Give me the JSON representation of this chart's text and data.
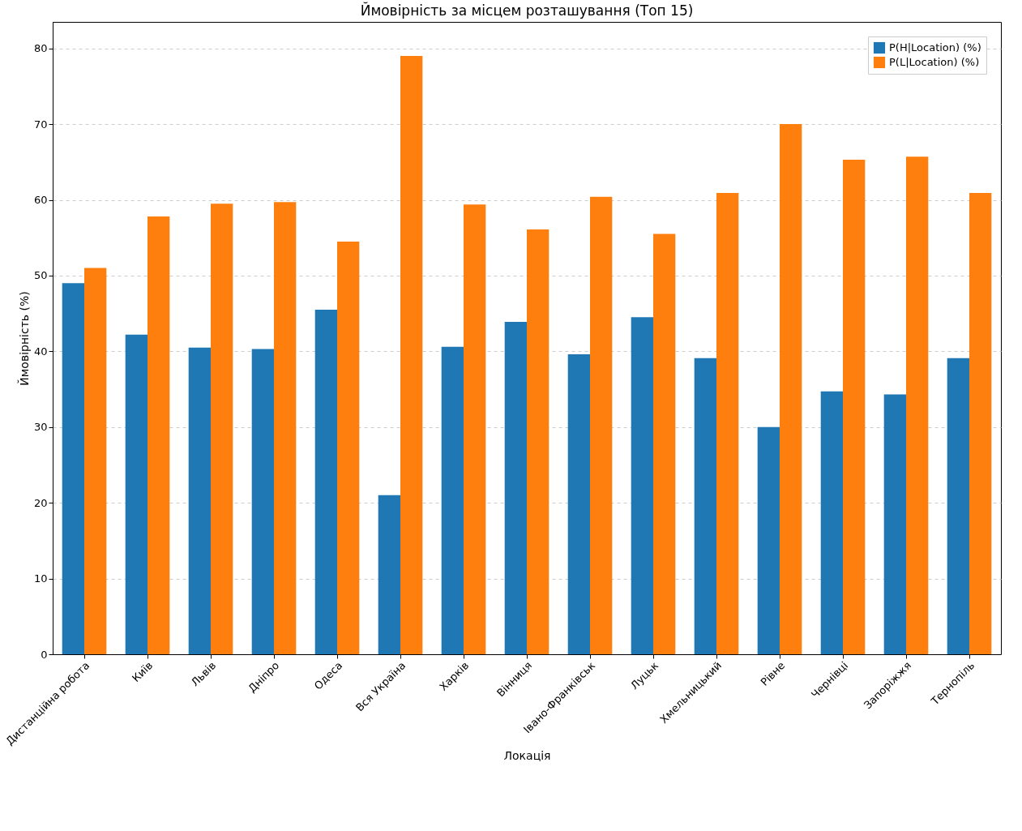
{
  "chart_data": {
    "type": "bar",
    "title": "Ймовірність за місцем розташування (Топ 15)",
    "xlabel": "Локація",
    "ylabel": "Ймовірність (%)",
    "categories": [
      "Дистанційна робота",
      "Київ",
      "Львів",
      "Дніпро",
      "Одеса",
      "Вся Україна",
      "Харків",
      "Вінниця",
      "Івано-Франківськ",
      "Луцьк",
      "Хмельницький",
      "Рівне",
      "Чернівці",
      "Запоріжжя",
      "Тернопіль"
    ],
    "series": [
      {
        "name": "P(H|Location) (%)",
        "color": "#1f77b4",
        "values": [
          49.0,
          42.2,
          40.5,
          40.3,
          45.5,
          21.0,
          40.6,
          43.9,
          39.6,
          44.5,
          39.1,
          30.0,
          34.7,
          34.3,
          39.1
        ]
      },
      {
        "name": "P(L|Location) (%)",
        "color": "#ff7f0e",
        "values": [
          51.0,
          57.8,
          59.5,
          59.7,
          54.5,
          79.0,
          59.4,
          56.1,
          60.4,
          55.5,
          60.9,
          70.0,
          65.3,
          65.7,
          60.9
        ]
      }
    ],
    "ylim": [
      0,
      83.5
    ],
    "yticks": [
      0,
      10,
      20,
      30,
      40,
      50,
      60,
      70,
      80
    ],
    "grid": "y",
    "legend": "top right"
  }
}
